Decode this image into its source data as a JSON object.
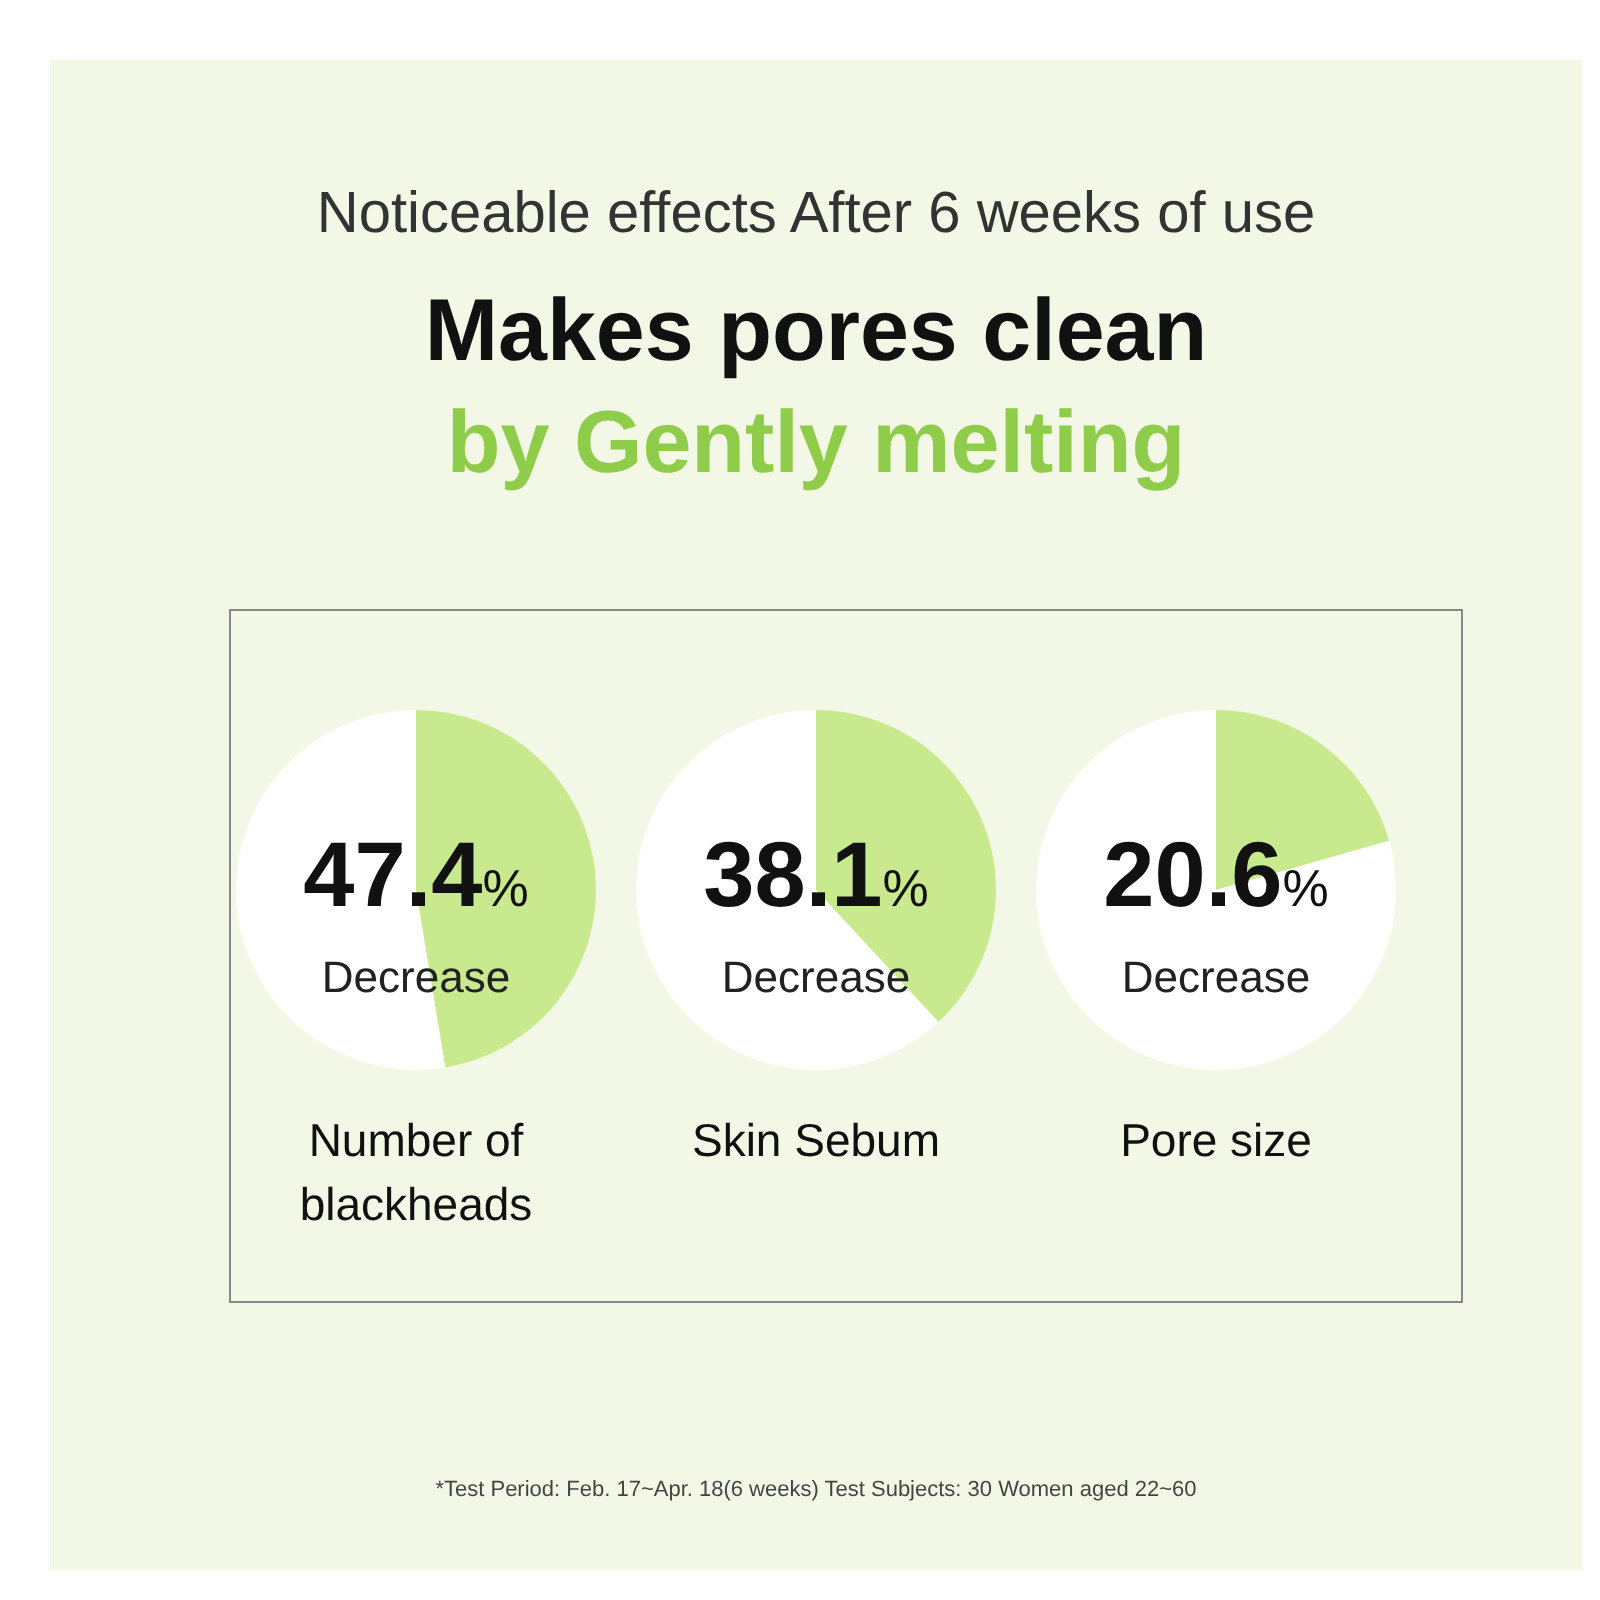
{
  "chart_data": [
    {
      "type": "other",
      "subtitle": "Noticeable effects After 6 weeks of use",
      "title": "Makes pores clean\nby Gently melting",
      "annotations": [
        "*Test Period: Feb. 17~Apr. 18(6 weeks)  Test Subjects: 30 Women aged 22~60"
      ]
    },
    {
      "type": "pie",
      "title": "Number of blackheads",
      "categories": [
        "Decrease",
        null
      ],
      "values": [
        47.4,
        52.6
      ],
      "colors": [
        "#c9e98e",
        "#ffffff"
      ],
      "value_labels": [
        "47.4%",
        null
      ]
    },
    {
      "type": "pie",
      "title": "Skin Sebum",
      "categories": [
        "Decrease",
        null
      ],
      "values": [
        38.1,
        61.9
      ],
      "colors": [
        "#c9e98e",
        "#ffffff"
      ],
      "value_labels": [
        "38.1%",
        null
      ]
    },
    {
      "type": "pie",
      "title": "Pore size",
      "categories": [
        "Decrease",
        null
      ],
      "values": [
        20.6,
        79.4
      ],
      "colors": [
        "#c9e98e",
        "#ffffff"
      ],
      "value_labels": [
        "20.6%",
        null
      ]
    }
  ]
}
